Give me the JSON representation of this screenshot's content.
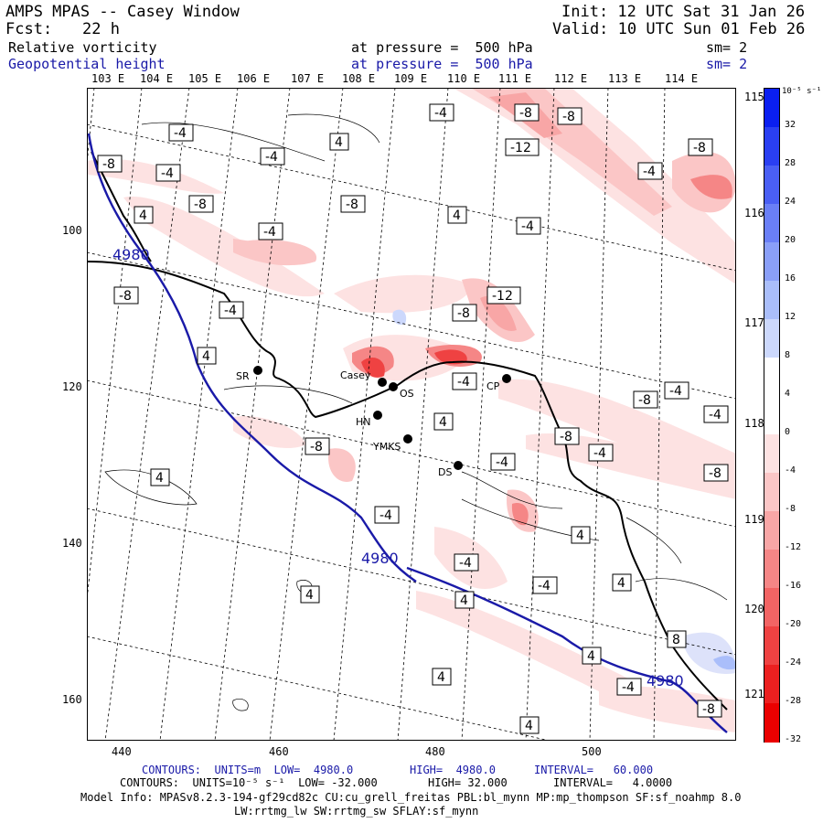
{
  "header": {
    "title": "AMPS MPAS -- Casey Window",
    "init": "Init: 12 UTC Sat 31 Jan 26",
    "fcst_label": "Fcst:",
    "fcst_value": "22 h",
    "valid": "Valid: 10 UTC Sun 01 Feb 26",
    "field1": "Relative vorticity",
    "field1_level": "at pressure =  500 hPa",
    "field1_sm": "sm= 2",
    "field2": "Geopotential height",
    "field2_level": "at pressure =  500 hPa",
    "field2_sm": "sm= 2"
  },
  "colors": {
    "negative": "#e83030",
    "positive": "#3050e0",
    "height_contour": "#1a1aa8",
    "coast": "#000000"
  },
  "map": {
    "lon_labels": [
      "103 E",
      "104 E",
      "105 E",
      "106 E",
      "107 E",
      "108 E",
      "109 E",
      "110 E",
      "111 E",
      "112 E",
      "113 E",
      "114 E"
    ],
    "lat_labels_right": [
      "115 E",
      "116 E",
      "117 E",
      "118 E",
      "119 E",
      "120 E",
      "121 E"
    ],
    "x_ticks": [
      "440",
      "460",
      "480",
      "500"
    ],
    "y_ticks": [
      "100",
      "120",
      "140",
      "160"
    ],
    "stations": [
      {
        "name": "SR"
      },
      {
        "name": "Casey"
      },
      {
        "name": "OS"
      },
      {
        "name": "HN"
      },
      {
        "name": "YMKS"
      },
      {
        "name": "DS"
      },
      {
        "name": "CP"
      }
    ],
    "contour_labels": [
      "-4",
      "-8",
      "-12",
      "4",
      "8",
      "4980"
    ],
    "height_label": "4980"
  },
  "colorbar": {
    "units": "10⁻⁵ s⁻¹",
    "ticks": [
      "32",
      "28",
      "24",
      "20",
      "16",
      "12",
      "8",
      "4",
      "0",
      "-4",
      "-8",
      "-12",
      "-16",
      "-20",
      "-24",
      "-28",
      "-32"
    ],
    "colors": [
      "#0a1ff0",
      "#2a3ff2",
      "#4a5ff4",
      "#6a7ff6",
      "#8a9ff8",
      "#aabefa",
      "#ccd8fc",
      "#ffffff",
      "#ffffff",
      "#fde2e2",
      "#fbc6c6",
      "#f8a6a6",
      "#f58686",
      "#f26464",
      "#ef4242",
      "#ec2020",
      "#ea0000"
    ]
  },
  "footer": {
    "line1_a": "CONTOURS:  UNITS=m  LOW=  4980.0",
    "line1_b": "HIGH=  4980.0",
    "line1_c": "INTERVAL=   60.000",
    "line2_a": "CONTOURS:  UNITS=10⁻⁵ s⁻¹  LOW= -32.000",
    "line2_b": "HIGH= 32.000",
    "line2_c": "INTERVAL=   4.0000",
    "model": "Model Info: MPASv8.2.3-194-gf29cd82c CU:cu_grell_freitas PBL:bl_mynn MP:mp_thompson SF:sf_noahmp 8.0",
    "model2": "LW:rrtmg_lw SW:rrtmg_sw SFLAY:sf_mynn"
  }
}
